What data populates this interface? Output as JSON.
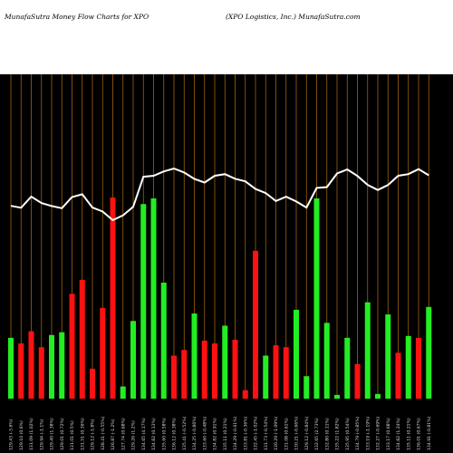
{
  "header": {
    "left_title": "MunafaSutra  Money Flow  Charts for XPO",
    "right_title": "(XPO Logistics,  Inc.) MunafaSutra.com"
  },
  "colors": {
    "background": "#000000",
    "up_bar": "#22ee22",
    "down_bar": "#ff1111",
    "grid": "#a0620f",
    "price_line": "#ffffff"
  },
  "chart_data": {
    "type": "bar",
    "title": "MunafaSutra  Money Flow  Charts for XPO",
    "grid": true,
    "categories": [
      "129.43 (-3.6%)",
      "129.10 (0.6%)",
      "131.09 (1.02%)",
      "129.94 (-1.1%)",
      "129.40 (1.38%)",
      "129.01 (0.72%)",
      "131.01 (0.5%)",
      "131.51 (0.36%)",
      "129.12 (-1.8%)",
      "128.41 (-0.55%)",
      "126.87 (-1.2%)",
      "127.74 (0.68%)",
      "129.26 (1.2%)",
      "134.65 (4.17%)",
      "134.82 (0.13%)",
      "135.60 (0.58%)",
      "136.12 (0.38%)",
      "135.41 (-0.52%)",
      "134.25 (-0.86%)",
      "133.60 (-0.48%)",
      "134.82 (0.91%)",
      "135.11 (0.21%)",
      "134.29 (-0.61%)",
      "133.81 (-0.36%)",
      "132.45 (-1.02%)",
      "131.73 (-0.54%)",
      "130.29 (-1.09%)",
      "131.08 (0.61%)",
      "130.21 (-0.66%)",
      "129.12 (-0.84%)",
      "132.65 (2.73%)",
      "132.80 (0.11%)",
      "135.22 (1.82%)",
      "135.95 (0.54%)",
      "134.79 (-0.85%)",
      "133.19 (-1.19%)",
      "132.27 (-0.69%)",
      "133.17 (0.68%)",
      "134.82 (1.24%)",
      "135.11 (0.21%)",
      "136.01 (0.67%)",
      "134.91 (-0.81%)"
    ],
    "series": [
      {
        "values": [
          65,
          59,
          72,
          55,
          68,
          71,
          112,
          127,
          32,
          97,
          215,
          13,
          83,
          208,
          214,
          124,
          46,
          52,
          91,
          62,
          59,
          78,
          63,
          9,
          158,
          46,
          57,
          55,
          95,
          24,
          214,
          81,
          4,
          65,
          37,
          103,
          5,
          90,
          49,
          67,
          65,
          98
        ],
        "direction": [
          "up",
          "down",
          "down",
          "down",
          "up",
          "up",
          "down",
          "down",
          "down",
          "down",
          "down",
          "up",
          "up",
          "up",
          "up",
          "up",
          "down",
          "down",
          "up",
          "down",
          "down",
          "up",
          "down",
          "down",
          "down",
          "up",
          "down",
          "down",
          "up",
          "up",
          "up",
          "up",
          "up",
          "up",
          "down",
          "up",
          "up",
          "up",
          "down",
          "up",
          "down",
          "up"
        ]
      },
      {
        "values": [
          129.43,
          129.1,
          131.09,
          129.94,
          129.4,
          129.01,
          131.01,
          131.51,
          129.12,
          128.41,
          126.87,
          127.74,
          129.26,
          134.65,
          134.82,
          135.6,
          136.12,
          135.41,
          134.25,
          133.6,
          134.82,
          135.11,
          134.29,
          133.81,
          132.45,
          131.73,
          130.29,
          131.08,
          130.21,
          129.12,
          132.65,
          132.8,
          135.22,
          135.95,
          134.79,
          133.19,
          132.27,
          133.17,
          134.82,
          135.11,
          136.01,
          134.91
        ]
      }
    ]
  }
}
